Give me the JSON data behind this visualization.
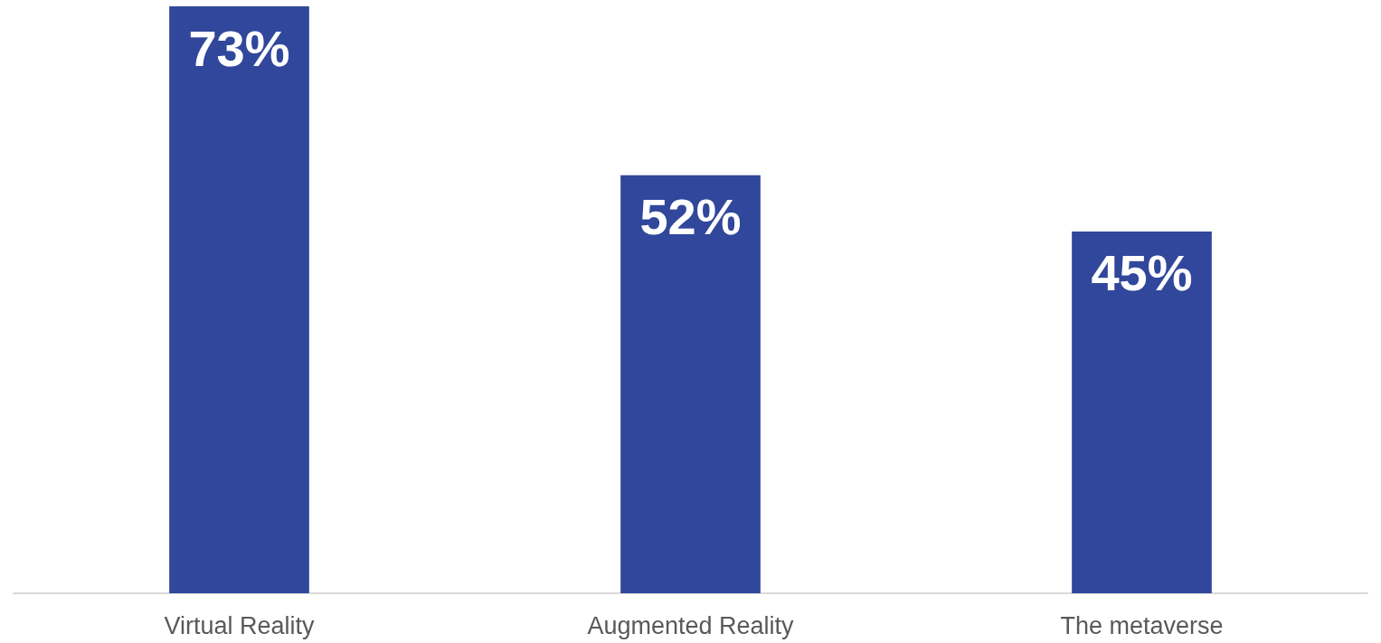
{
  "chart_data": {
    "type": "bar",
    "categories": [
      "Virtual Reality",
      "Augmented Reality",
      "The metaverse"
    ],
    "values": [
      73,
      52,
      45
    ],
    "value_labels": [
      "73%",
      "52%",
      "45%"
    ],
    "color": "#31479b",
    "ylim": [
      0,
      73
    ]
  }
}
